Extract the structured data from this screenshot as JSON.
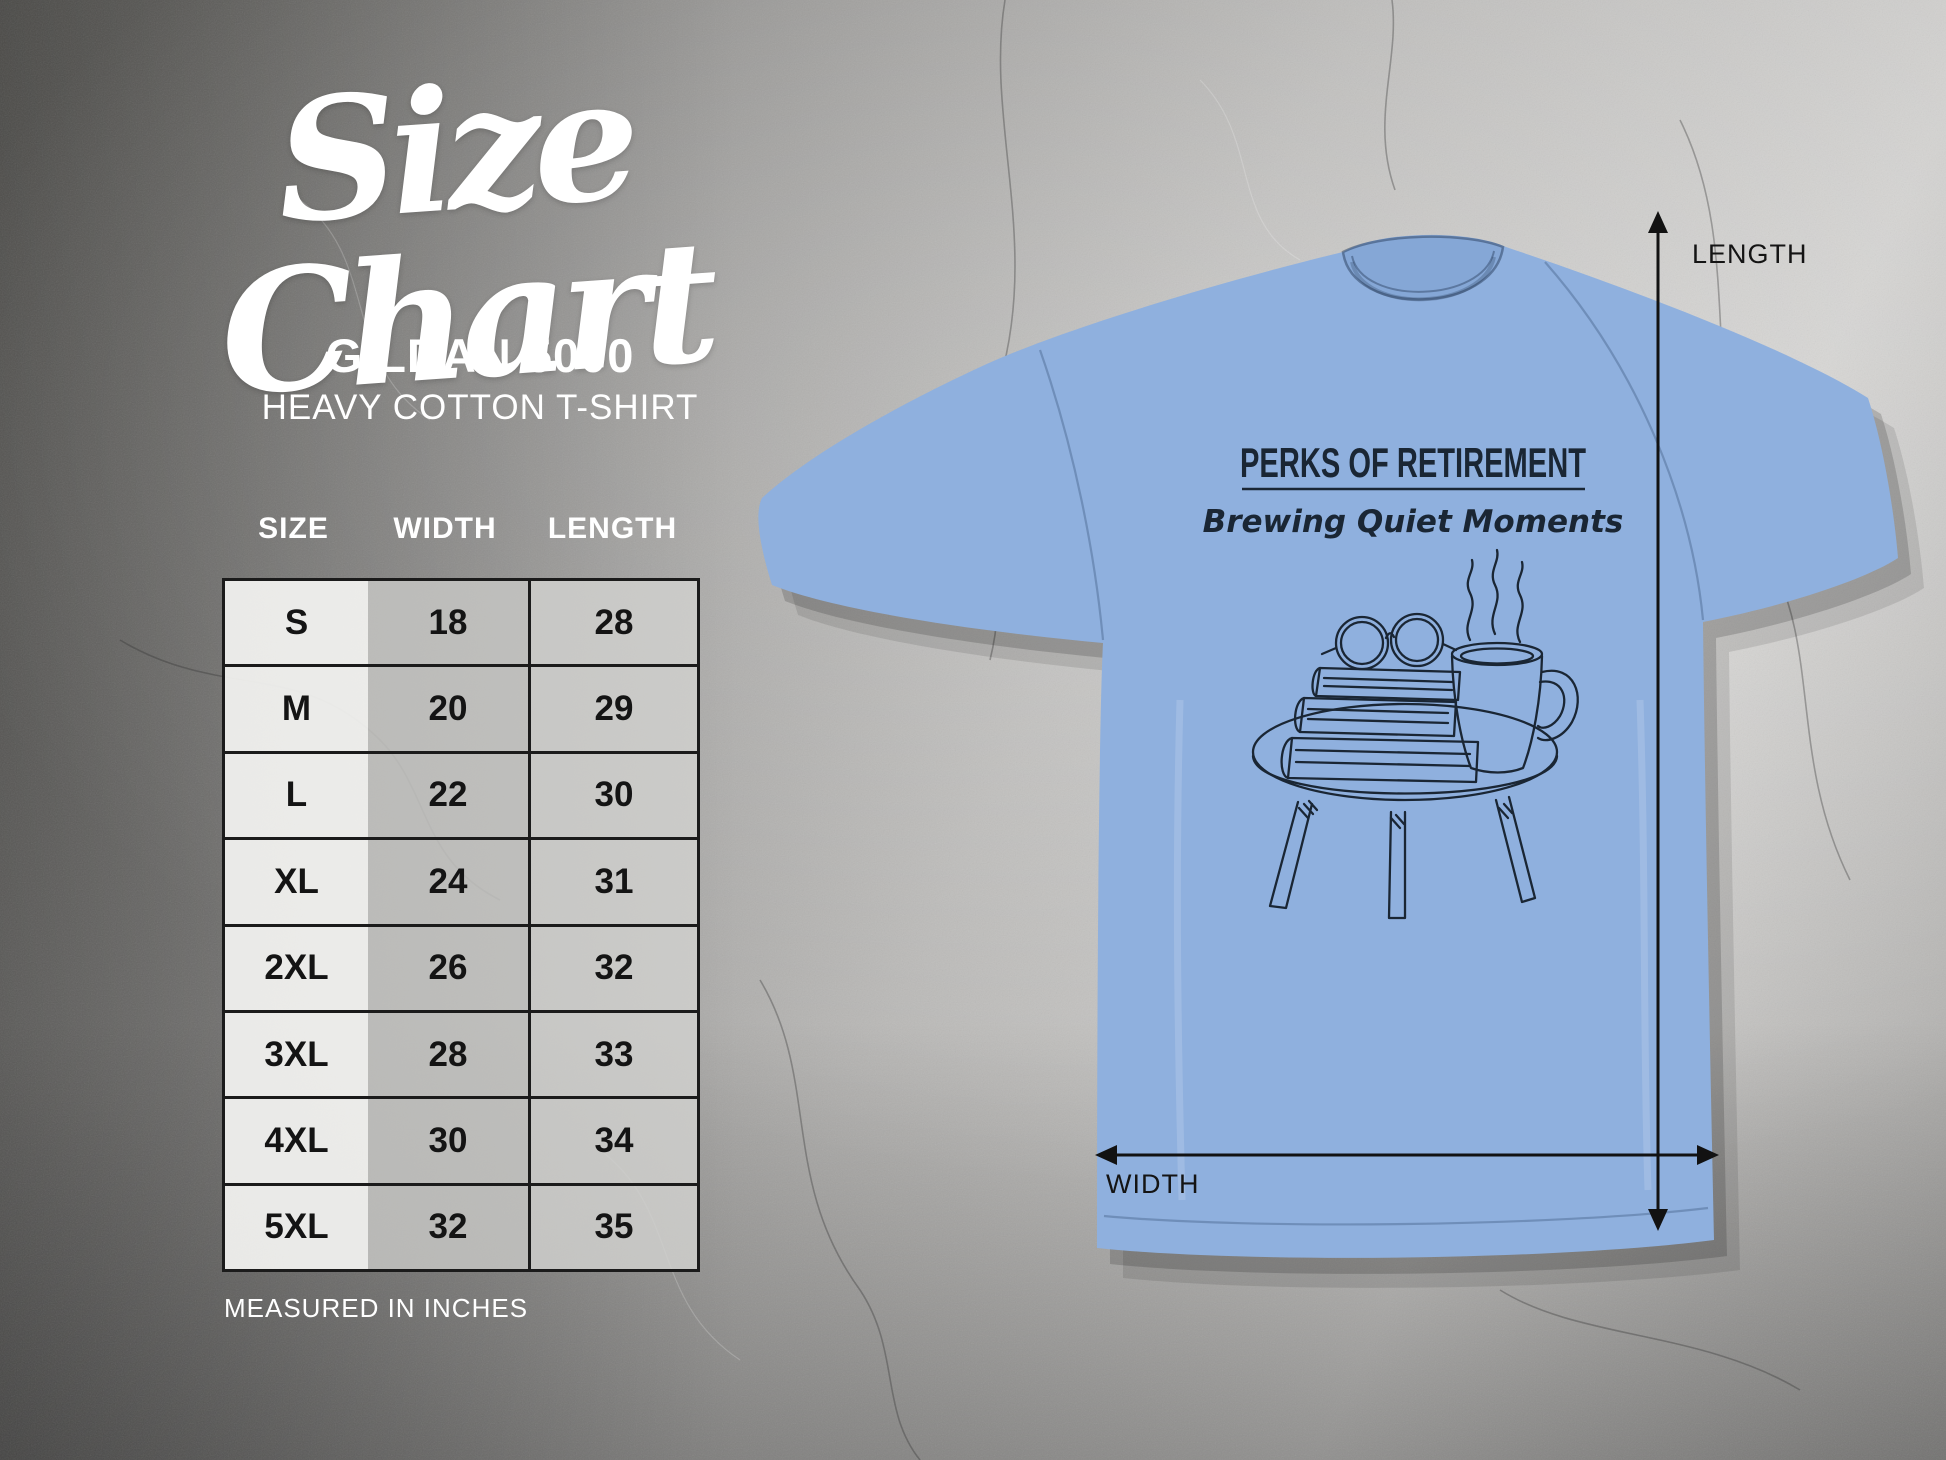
{
  "page": {
    "title": "Size Chart",
    "product_line1": "GILDAN 5000",
    "product_line2": "HEAVY COTTON T-SHIRT",
    "footnote": "MEASURED IN INCHES"
  },
  "size_table": {
    "columns": [
      "SIZE",
      "WIDTH",
      "LENGTH"
    ],
    "rows": [
      {
        "size": "S",
        "width": "18",
        "length": "28"
      },
      {
        "size": "M",
        "width": "20",
        "length": "29"
      },
      {
        "size": "L",
        "width": "22",
        "length": "30"
      },
      {
        "size": "XL",
        "width": "24",
        "length": "31"
      },
      {
        "size": "2XL",
        "width": "26",
        "length": "32"
      },
      {
        "size": "3XL",
        "width": "28",
        "length": "33"
      },
      {
        "size": "4XL",
        "width": "30",
        "length": "34"
      },
      {
        "size": "5XL",
        "width": "32",
        "length": "35"
      }
    ],
    "units": "inches"
  },
  "chart_data": {
    "type": "table",
    "title": "Size Chart - Gildan 5000 Heavy Cotton T-Shirt",
    "columns": [
      "SIZE",
      "WIDTH",
      "LENGTH"
    ],
    "units": "inches",
    "rows": [
      [
        "S",
        18,
        28
      ],
      [
        "M",
        20,
        29
      ],
      [
        "L",
        22,
        30
      ],
      [
        "XL",
        24,
        31
      ],
      [
        "2XL",
        26,
        32
      ],
      [
        "3XL",
        28,
        33
      ],
      [
        "4XL",
        30,
        34
      ],
      [
        "5XL",
        32,
        35
      ]
    ]
  },
  "shirt": {
    "design_title": "PERKS OF RETIREMENT",
    "design_subtitle": "Brewing Quiet Moments",
    "color_hex": "#8fb0de",
    "ink_hex": "#1a2634",
    "illustration": "stack of books with round glasses and steaming coffee mug on a round side table"
  },
  "measurements": {
    "length_label": "LENGTH",
    "width_label": "WIDTH",
    "arrow_color": "#121212"
  }
}
